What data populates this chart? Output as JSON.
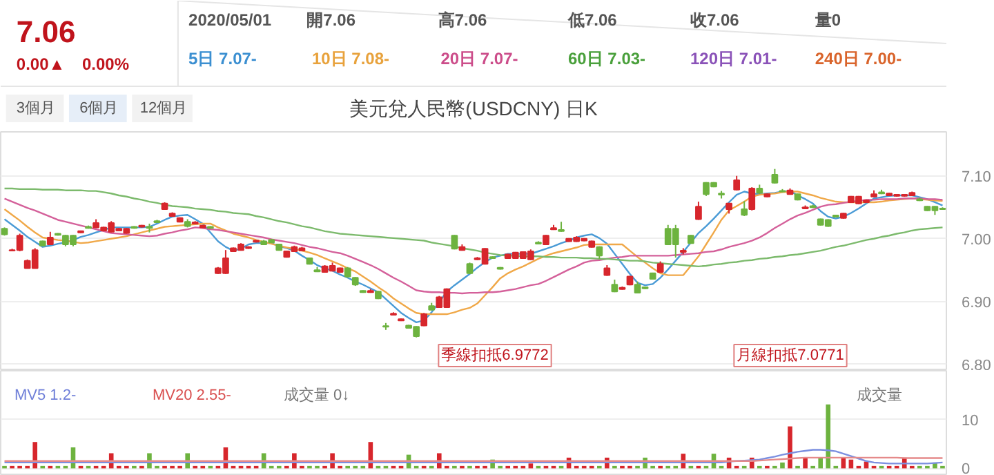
{
  "chart_data": [
    {
      "type": "candlestick",
      "title": "美元兌人民幣(USDCNY) 日K",
      "categories": [
        null,
        null,
        null,
        null,
        null,
        null,
        null,
        null,
        null,
        null,
        null,
        null,
        null,
        null,
        null,
        null,
        null,
        null,
        null,
        null,
        null,
        null,
        null,
        null,
        null,
        null,
        null,
        null,
        null,
        null,
        null,
        null,
        null,
        null,
        null,
        null,
        null,
        null,
        null,
        null,
        null,
        null,
        null,
        null,
        null,
        null,
        null,
        null,
        null,
        null,
        null,
        null,
        null,
        null,
        null,
        null,
        null,
        null,
        null,
        null,
        null,
        null,
        null,
        null,
        null,
        null,
        null,
        null,
        null,
        null,
        null,
        null,
        null,
        null,
        null,
        null,
        null,
        null,
        null,
        null,
        null,
        null,
        null,
        null,
        null,
        null,
        null,
        null,
        null,
        null,
        null,
        null,
        null,
        null,
        null,
        null,
        null,
        null,
        null,
        null,
        null,
        null,
        null,
        null,
        null,
        null,
        null,
        null,
        null,
        null,
        null,
        null,
        null,
        null,
        null,
        null,
        null,
        null,
        null,
        null,
        null,
        null,
        null,
        null
      ],
      "ohlc": [
        [
          7.016,
          7.018,
          7.005,
          7.007
        ],
        [
          6.981,
          6.984,
          6.98,
          6.982
        ],
        [
          6.982,
          7.008,
          6.98,
          7.005
        ],
        [
          6.953,
          6.967,
          6.953,
          6.965
        ],
        [
          6.953,
          6.985,
          6.953,
          6.982
        ],
        [
          6.996,
          6.997,
          6.988,
          6.989
        ],
        [
          6.991,
          7.011,
          6.99,
          7.002
        ],
        [
          7.008,
          7.009,
          7.005,
          7.006
        ],
        [
          7.005,
          7.006,
          6.988,
          6.991
        ],
        [
          7.005,
          7.006,
          6.988,
          6.991
        ],
        [
          7.01,
          7.013,
          7.009,
          7.012
        ],
        [
          7.019,
          7.021,
          7.016,
          7.017
        ],
        [
          7.018,
          7.031,
          7.017,
          7.025
        ],
        [
          7.013,
          7.019,
          7.012,
          7.018
        ],
        [
          7.011,
          7.028,
          7.01,
          7.025
        ],
        [
          7.013,
          7.017,
          7.012,
          7.016
        ],
        [
          7.009,
          7.017,
          7.008,
          7.016
        ],
        [
          7.019,
          7.02,
          7.016,
          7.017
        ],
        [
          7.019,
          7.022,
          7.018,
          7.021
        ],
        [
          7.019,
          7.024,
          7.01,
          7.017
        ],
        [
          7.028,
          7.03,
          7.025,
          7.026
        ],
        [
          7.047,
          7.058,
          7.046,
          7.056
        ],
        [
          7.036,
          7.042,
          7.035,
          7.04
        ],
        [
          7.027,
          7.034,
          7.026,
          7.033
        ],
        [
          7.027,
          7.031,
          7.018,
          7.02
        ],
        [
          7.024,
          7.028,
          7.023,
          7.026
        ],
        [
          7.018,
          7.022,
          7.017,
          7.021
        ],
        [
          7.019,
          7.02,
          7.016,
          7.017
        ],
        [
          6.945,
          6.955,
          6.944,
          6.953
        ],
        [
          6.945,
          6.982,
          6.944,
          6.969
        ],
        [
          6.98,
          6.986,
          6.979,
          6.985
        ],
        [
          6.982,
          6.993,
          6.981,
          6.991
        ],
        [
          6.985,
          6.988,
          6.984,
          6.987
        ],
        [
          6.995,
          6.998,
          6.994,
          6.997
        ],
        [
          6.996,
          6.998,
          6.99,
          6.991
        ],
        [
          6.998,
          7.0,
          6.993,
          6.994
        ],
        [
          6.991,
          6.992,
          6.981,
          6.982
        ],
        [
          6.971,
          6.981,
          6.97,
          6.98
        ],
        [
          6.98,
          6.989,
          6.979,
          6.987
        ],
        [
          6.981,
          6.987,
          6.98,
          6.985
        ],
        [
          6.969,
          6.97,
          6.959,
          6.96
        ],
        [
          6.95,
          6.955,
          6.947,
          6.948
        ],
        [
          6.947,
          6.958,
          6.946,
          6.956
        ],
        [
          6.949,
          6.962,
          6.948,
          6.957
        ],
        [
          6.947,
          6.954,
          6.946,
          6.953
        ],
        [
          6.953,
          6.955,
          6.938,
          6.94
        ],
        [
          6.938,
          6.939,
          6.925,
          6.927
        ],
        [
          6.917,
          6.918,
          6.914,
          6.915
        ],
        [
          6.915,
          6.92,
          6.914,
          6.917
        ],
        [
          6.916,
          6.917,
          6.904,
          6.905
        ],
        [
          6.861,
          6.866,
          6.855,
          6.86
        ],
        [
          6.879,
          6.883,
          6.878,
          6.881
        ],
        [
          6.87,
          6.873,
          6.869,
          6.872
        ],
        [
          6.862,
          6.863,
          6.857,
          6.858
        ],
        [
          6.86,
          6.861,
          6.843,
          6.845
        ],
        [
          6.862,
          6.882,
          6.861,
          6.88
        ],
        [
          6.893,
          6.898,
          6.886,
          6.887
        ],
        [
          6.891,
          6.909,
          6.89,
          6.907
        ],
        [
          6.891,
          6.921,
          6.89,
          6.92
        ],
        [
          7.005,
          7.006,
          6.983,
          6.984
        ],
        [
          6.982,
          6.991,
          6.981,
          6.987
        ],
        [
          6.96,
          6.962,
          6.944,
          6.945
        ],
        [
          6.967,
          6.971,
          6.966,
          6.969
        ],
        [
          6.96,
          6.985,
          6.959,
          6.984
        ],
        [
          6.971,
          6.972,
          6.968,
          6.969
        ],
        [
          6.954,
          6.955,
          6.951,
          6.952
        ],
        [
          6.969,
          6.976,
          6.968,
          6.975
        ],
        [
          6.969,
          6.979,
          6.968,
          6.978
        ],
        [
          6.969,
          6.98,
          6.968,
          6.979
        ],
        [
          6.967,
          6.983,
          6.966,
          6.98
        ],
        [
          6.994,
          6.996,
          6.991,
          6.992
        ],
        [
          6.991,
          7.006,
          6.99,
          7.005
        ],
        [
          7.015,
          7.022,
          7.014,
          7.017
        ],
        [
          7.014,
          7.027,
          7.011,
          7.012
        ],
        [
          6.996,
          7.001,
          6.995,
          7.0
        ],
        [
          6.996,
          7.004,
          6.995,
          7.002
        ],
        [
          6.997,
          7.001,
          6.996,
          7.0
        ],
        [
          6.987,
          6.997,
          6.986,
          6.996
        ],
        [
          6.987,
          6.988,
          6.968,
          6.973
        ],
        [
          6.942,
          6.958,
          6.941,
          6.953
        ],
        [
          6.927,
          6.935,
          6.915,
          6.916
        ],
        [
          6.92,
          6.924,
          6.919,
          6.922
        ],
        [
          6.927,
          6.941,
          6.926,
          6.94
        ],
        [
          6.927,
          6.932,
          6.913,
          6.914
        ],
        [
          6.923,
          6.924,
          6.92,
          6.921
        ],
        [
          6.945,
          6.946,
          6.935,
          6.936
        ],
        [
          6.947,
          6.964,
          6.946,
          6.96
        ],
        [
          7.016,
          7.022,
          6.99,
          6.991
        ],
        [
          7.016,
          7.022,
          6.97,
          6.991
        ],
        [
          6.979,
          6.985,
          6.975,
          6.981
        ],
        [
          7.005,
          7.006,
          6.992,
          6.993
        ],
        [
          7.031,
          7.059,
          7.03,
          7.051
        ],
        [
          7.089,
          7.09,
          7.068,
          7.071
        ],
        [
          7.089,
          7.09,
          7.082,
          7.083
        ],
        [
          7.072,
          7.076,
          7.064,
          7.07
        ],
        [
          7.047,
          7.057,
          7.04,
          7.056
        ],
        [
          7.078,
          7.1,
          7.077,
          7.093
        ],
        [
          7.047,
          7.06,
          7.036,
          7.038
        ],
        [
          7.047,
          7.082,
          7.045,
          7.08
        ],
        [
          7.08,
          7.086,
          7.071,
          7.073
        ],
        [
          7.067,
          7.072,
          7.066,
          7.071
        ],
        [
          7.102,
          7.111,
          7.088,
          7.089
        ],
        [
          7.076,
          7.079,
          7.074,
          7.075
        ],
        [
          7.071,
          7.08,
          7.07,
          7.077
        ],
        [
          7.071,
          7.072,
          7.061,
          7.062
        ],
        [
          7.048,
          7.053,
          7.047,
          7.05
        ],
        [
          7.052,
          7.054,
          7.049,
          7.05
        ],
        [
          7.031,
          7.032,
          7.021,
          7.022
        ],
        [
          7.03,
          7.031,
          7.019,
          7.02
        ],
        [
          7.037,
          7.038,
          7.034,
          7.035
        ],
        [
          7.033,
          7.041,
          7.032,
          7.04
        ],
        [
          7.058,
          7.068,
          7.057,
          7.067
        ],
        [
          7.056,
          7.068,
          7.055,
          7.067
        ],
        [
          7.058,
          7.062,
          7.057,
          7.061
        ],
        [
          7.067,
          7.077,
          7.066,
          7.071
        ],
        [
          7.074,
          7.078,
          7.071,
          7.072
        ],
        [
          7.069,
          7.073,
          7.068,
          7.072
        ],
        [
          7.068,
          7.071,
          7.067,
          7.07
        ],
        [
          7.068,
          7.071,
          7.067,
          7.07
        ],
        [
          7.069,
          7.075,
          7.068,
          7.073
        ],
        [
          7.063,
          7.065,
          7.06,
          7.061
        ],
        [
          7.051,
          7.052,
          7.044,
          7.045
        ],
        [
          7.051,
          7.052,
          7.038,
          7.045
        ],
        [
          7.048,
          7.05,
          7.046,
          7.047
        ]
      ],
      "colors": [
        "#6db33f",
        "#d7262c",
        "#d7262c",
        "#d7262c",
        "#d7262c",
        "#6db33f",
        "#d7262c",
        "#6db33f",
        "#6db33f",
        "#6db33f",
        "#d7262c",
        "#6db33f",
        "#d7262c",
        "#d7262c",
        "#d7262c",
        "#d7262c",
        "#d7262c",
        "#6db33f",
        "#d7262c",
        "#6db33f",
        "#6db33f",
        "#d7262c",
        "#d7262c",
        "#d7262c",
        "#6db33f",
        "#d7262c",
        "#d7262c",
        "#6db33f",
        "#d7262c",
        "#d7262c",
        "#d7262c",
        "#d7262c",
        "#d7262c",
        "#d7262c",
        "#6db33f",
        "#6db33f",
        "#6db33f",
        "#d7262c",
        "#d7262c",
        "#d7262c",
        "#6db33f",
        "#6db33f",
        "#d7262c",
        "#d7262c",
        "#d7262c",
        "#6db33f",
        "#6db33f",
        "#6db33f",
        "#d7262c",
        "#6db33f",
        "#6db33f",
        "#d7262c",
        "#d7262c",
        "#6db33f",
        "#6db33f",
        "#d7262c",
        "#6db33f",
        "#d7262c",
        "#d7262c",
        "#6db33f",
        "#d7262c",
        "#6db33f",
        "#d7262c",
        "#d7262c",
        "#6db33f",
        "#6db33f",
        "#d7262c",
        "#d7262c",
        "#d7262c",
        "#d7262c",
        "#6db33f",
        "#d7262c",
        "#d7262c",
        "#6db33f",
        "#d7262c",
        "#d7262c",
        "#d7262c",
        "#d7262c",
        "#6db33f",
        "#d7262c",
        "#6db33f",
        "#d7262c",
        "#d7262c",
        "#6db33f",
        "#6db33f",
        "#6db33f",
        "#d7262c",
        "#6db33f",
        "#6db33f",
        "#d7262c",
        "#6db33f",
        "#d7262c",
        "#6db33f",
        "#6db33f",
        "#6db33f",
        "#d7262c",
        "#d7262c",
        "#6db33f",
        "#d7262c",
        "#6db33f",
        "#d7262c",
        "#6db33f",
        "#6db33f",
        "#d7262c",
        "#6db33f",
        "#d7262c",
        "#6db33f",
        "#6db33f",
        "#6db33f",
        "#6db33f",
        "#d7262c",
        "#d7262c",
        "#d7262c",
        "#d7262c",
        "#d7262c",
        "#6db33f",
        "#d7262c",
        "#d7262c",
        "#d7262c",
        "#d7262c",
        "#6db33f",
        "#6db33f",
        "#6db33f",
        "#6db33f"
      ],
      "series": [
        {
          "type": "line",
          "color": "#4a9bd6",
          "values": [
            7.031,
            7.022,
            7.013,
            7.003,
            6.995,
            6.987,
            6.989,
            6.992,
            6.994,
            6.998,
            7.003,
            7.006,
            7.01,
            7.014,
            7.018,
            7.018,
            7.018,
            7.018,
            7.018,
            7.019,
            7.024,
            7.03,
            7.035,
            7.037,
            7.038,
            7.031,
            7.024,
            7.01,
            6.996,
            6.987,
            6.981,
            6.984,
            6.991,
            6.993,
            6.993,
            6.993,
            6.988,
            6.985,
            6.981,
            6.973,
            6.966,
            6.958,
            6.953,
            6.949,
            6.943,
            6.938,
            6.932,
            6.927,
            6.921,
            6.915,
            6.904,
            6.893,
            6.882,
            6.874,
            6.867,
            6.87,
            6.883,
            6.899,
            6.916,
            6.926,
            6.935,
            6.944,
            6.954,
            6.963,
            6.97,
            6.973,
            6.976,
            6.976,
            6.976,
            6.976,
            6.98,
            6.984,
            6.988,
            6.993,
            6.997,
            7.002,
            7.005,
            7.007,
            7.001,
            6.992,
            6.976,
            6.96,
            6.944,
            6.93,
            6.926,
            6.928,
            6.938,
            6.951,
            6.965,
            6.979,
            6.994,
            7.009,
            7.02,
            7.032,
            7.045,
            7.058,
            7.07,
            7.075,
            7.072,
            7.071,
            7.072,
            7.073,
            7.075,
            7.076,
            7.069,
            7.063,
            7.056,
            7.044,
            7.035,
            7.032,
            7.035,
            7.041,
            7.048,
            7.056,
            7.064,
            7.066,
            7.068,
            7.069,
            7.069,
            7.069,
            7.066,
            7.063,
            7.058,
            7.053
          ]
        },
        {
          "type": "line",
          "color": "#f0a848",
          "values": [
            7.047,
            7.038,
            7.029,
            7.019,
            7.01,
            7.002,
            7.0,
            6.998,
            6.997,
            6.995,
            6.993,
            6.994,
            6.996,
            6.998,
            7.0,
            7.002,
            7.004,
            7.007,
            7.01,
            7.013,
            7.016,
            7.019,
            7.02,
            7.021,
            7.022,
            7.023,
            7.024,
            7.024,
            7.018,
            7.013,
            7.008,
            7.005,
            7.002,
            6.998,
            6.995,
            6.992,
            6.989,
            6.986,
            6.984,
            6.981,
            6.978,
            6.974,
            6.969,
            6.964,
            6.959,
            6.953,
            6.948,
            6.94,
            6.932,
            6.923,
            6.915,
            6.905,
            6.897,
            6.889,
            6.882,
            6.88,
            6.88,
            6.88,
            6.88,
            6.883,
            6.887,
            6.89,
            6.897,
            6.91,
            6.923,
            6.937,
            6.945,
            6.951,
            6.956,
            6.962,
            6.968,
            6.973,
            6.977,
            6.98,
            6.983,
            6.986,
            6.99,
            6.991,
            6.991,
            6.991,
            6.991,
            6.991,
            6.981,
            6.971,
            6.962,
            6.953,
            6.945,
            6.942,
            6.942,
            6.942,
            6.957,
            6.972,
            6.991,
            7.01,
            7.03,
            7.045,
            7.052,
            7.059,
            7.067,
            7.07,
            7.071,
            7.072,
            7.074,
            7.075,
            7.075,
            7.072,
            7.069,
            7.065,
            7.062,
            7.059,
            7.058,
            7.058,
            7.058,
            7.058,
            7.058,
            7.059,
            7.061,
            7.062,
            7.063,
            7.064,
            7.063,
            7.062,
            7.061,
            7.06
          ]
        },
        {
          "type": "line",
          "color": "#d4609a",
          "values": [
            7.064,
            7.059,
            7.054,
            7.049,
            7.045,
            7.04,
            7.035,
            7.03,
            7.027,
            7.024,
            7.021,
            7.018,
            7.015,
            7.012,
            7.009,
            7.008,
            7.007,
            7.006,
            7.005,
            7.004,
            7.005,
            7.008,
            7.01,
            7.013,
            7.015,
            7.018,
            7.017,
            7.015,
            7.014,
            7.012,
            7.01,
            7.008,
            7.006,
            7.004,
            7.002,
            6.999,
            6.997,
            6.995,
            6.993,
            6.99,
            6.987,
            6.985,
            6.982,
            6.979,
            6.977,
            6.973,
            6.968,
            6.963,
            6.958,
            6.952,
            6.945,
            6.938,
            6.932,
            6.925,
            6.918,
            6.916,
            6.915,
            6.915,
            6.914,
            6.914,
            6.913,
            6.914,
            6.914,
            6.915,
            6.915,
            6.916,
            6.918,
            6.92,
            6.923,
            6.926,
            6.928,
            6.933,
            6.939,
            6.945,
            6.951,
            6.956,
            6.962,
            6.965,
            6.966,
            6.968,
            6.97,
            6.971,
            6.973,
            6.973,
            6.973,
            6.973,
            6.973,
            6.973,
            6.974,
            6.975,
            6.976,
            6.977,
            6.979,
            6.98,
            6.983,
            6.987,
            6.99,
            6.993,
            6.997,
            7.002,
            7.009,
            7.017,
            7.024,
            7.031,
            7.037,
            7.041,
            7.046,
            7.051,
            7.054,
            7.055,
            7.057,
            7.059,
            7.06,
            7.062,
            7.062,
            7.063,
            7.063,
            7.063,
            7.064,
            7.064,
            7.064,
            7.063,
            7.063,
            7.062
          ]
        },
        {
          "type": "line",
          "color": "#7cba6c",
          "values": [
            7.08,
            7.08,
            7.079,
            7.079,
            7.079,
            7.078,
            7.078,
            7.078,
            7.077,
            7.077,
            7.077,
            7.076,
            7.076,
            7.074,
            7.072,
            7.069,
            7.067,
            7.064,
            7.062,
            7.059,
            7.057,
            7.054,
            7.052,
            7.051,
            7.05,
            7.048,
            7.047,
            7.046,
            7.044,
            7.043,
            7.041,
            7.04,
            7.039,
            7.036,
            7.034,
            7.031,
            7.028,
            7.026,
            7.023,
            7.02,
            7.018,
            7.015,
            7.012,
            7.01,
            7.008,
            7.007,
            7.006,
            7.005,
            7.004,
            7.003,
            7.002,
            7.001,
            7.0,
            6.999,
            6.998,
            6.997,
            6.994,
            6.992,
            6.99,
            6.988,
            6.985,
            6.983,
            6.981,
            6.978,
            6.976,
            6.974,
            6.973,
            6.973,
            6.972,
            6.972,
            6.972,
            6.971,
            6.971,
            6.97,
            6.97,
            6.97,
            6.969,
            6.969,
            6.968,
            6.968,
            6.967,
            6.966,
            6.965,
            6.965,
            6.964,
            6.962,
            6.961,
            6.96,
            6.959,
            6.958,
            6.957,
            6.956,
            6.957,
            6.959,
            6.96,
            6.962,
            6.963,
            6.965,
            6.966,
            6.968,
            6.969,
            6.971,
            6.972,
            6.974,
            6.975,
            6.977,
            6.979,
            6.981,
            6.984,
            6.987,
            6.989,
            6.992,
            6.995,
            6.998,
            7.0,
            7.003,
            7.005,
            7.008,
            7.01,
            7.013,
            7.015,
            7.016,
            7.017,
            7.018
          ]
        }
      ],
      "annotations": [
        "7.06",
        "0.00▲",
        "0.00%",
        "2020/05/01",
        "開7.06",
        "高7.06",
        "低7.06",
        "收7.06",
        "量0",
        "5日 7.07-",
        "10日 7.08-",
        "20日 7.07-",
        "60日 7.03-",
        "120日 7.01-",
        "240日 7.00-",
        "3個月",
        "6個月",
        "12個月",
        "季線扣抵6.9772",
        "月線扣抵7.0771"
      ],
      "ylim": [
        6.79,
        7.17
      ],
      "yticks": [
        {
          "value": 6.8,
          "label": "6.80"
        },
        {
          "value": 6.9,
          "label": "6.90"
        },
        {
          "value": 7.0,
          "label": "7.00"
        },
        {
          "value": 7.1,
          "label": "7.10"
        }
      ],
      "grid": "y",
      "tick_labels": "y"
    },
    {
      "type": "bar",
      "categories": [
        null,
        null,
        null,
        null,
        null,
        null,
        null,
        null,
        null,
        null,
        null,
        null,
        null,
        null,
        null,
        null,
        null,
        null,
        null,
        null,
        null,
        null,
        null,
        null,
        null,
        null,
        null,
        null,
        null,
        null,
        null,
        null,
        null,
        null,
        null,
        null,
        null,
        null,
        null,
        null,
        null,
        null,
        null,
        null,
        null,
        null,
        null,
        null,
        null,
        null,
        null,
        null,
        null,
        null,
        null,
        null,
        null,
        null,
        null,
        null,
        null,
        null,
        null,
        null,
        null,
        null,
        null,
        null,
        null,
        null,
        null,
        null,
        null,
        null,
        null,
        null,
        null,
        null,
        null,
        null,
        null,
        null,
        null,
        null,
        null,
        null,
        null,
        null,
        null,
        null,
        null,
        null,
        null,
        null,
        null,
        null,
        null,
        null,
        null,
        null,
        null,
        null,
        null,
        null,
        null,
        null,
        null,
        null,
        null,
        null,
        null,
        null,
        null,
        null,
        null,
        null,
        null,
        null,
        null,
        null,
        null,
        null,
        null,
        null
      ],
      "values": [
        0.5,
        0.5,
        0.5,
        0.5,
        5.4,
        0.5,
        0.5,
        0.5,
        0.5,
        4.3,
        0.5,
        0.5,
        0.5,
        0.5,
        3.1,
        0.5,
        0.5,
        0.5,
        0.5,
        3.1,
        0.5,
        0.5,
        0.5,
        0.5,
        3.1,
        0.5,
        0.5,
        0.5,
        0.5,
        4.3,
        0.5,
        0.5,
        0.5,
        0.5,
        3.1,
        0.5,
        0.5,
        0.5,
        3.1,
        0.5,
        0.5,
        0.5,
        0.5,
        3.1,
        0.5,
        0.5,
        0.5,
        0.5,
        5.4,
        0.5,
        0.5,
        0.5,
        0.5,
        2.8,
        0.5,
        0.5,
        0.5,
        3.1,
        0.5,
        0.5,
        0.5,
        0.5,
        0.5,
        0.5,
        1.8,
        0.5,
        0.5,
        0.5,
        0.5,
        1.0,
        0.5,
        0.5,
        0.5,
        0.5,
        2.2,
        0.5,
        0.5,
        0.5,
        0.5,
        2.2,
        0.5,
        0.5,
        0.5,
        0.5,
        2.2,
        0.5,
        0.5,
        0.5,
        0.5,
        3.0,
        0.5,
        0.5,
        0.5,
        3.0,
        0.5,
        2.2,
        0.5,
        0.5,
        2.2,
        0.5,
        0.5,
        0.5,
        1.2,
        8.6,
        0.5,
        2.2,
        0.5,
        2.2,
        13.1,
        0.5,
        2.2,
        1.8,
        0.5,
        1.4,
        0.5,
        0.5,
        0.5,
        0.5,
        2.2,
        0.5,
        0.5,
        0.5,
        1.2,
        0.5
      ],
      "colors": [
        "#6db33f",
        "#d7262c",
        "#d7262c",
        "#d7262c",
        "#d7262c",
        "#6db33f",
        "#d7262c",
        "#6db33f",
        "#6db33f",
        "#6db33f",
        "#d7262c",
        "#6db33f",
        "#d7262c",
        "#d7262c",
        "#d7262c",
        "#d7262c",
        "#d7262c",
        "#6db33f",
        "#d7262c",
        "#6db33f",
        "#6db33f",
        "#d7262c",
        "#d7262c",
        "#d7262c",
        "#6db33f",
        "#d7262c",
        "#d7262c",
        "#6db33f",
        "#d7262c",
        "#d7262c",
        "#d7262c",
        "#d7262c",
        "#d7262c",
        "#d7262c",
        "#6db33f",
        "#6db33f",
        "#6db33f",
        "#d7262c",
        "#d7262c",
        "#d7262c",
        "#6db33f",
        "#6db33f",
        "#d7262c",
        "#d7262c",
        "#d7262c",
        "#6db33f",
        "#6db33f",
        "#6db33f",
        "#d7262c",
        "#6db33f",
        "#6db33f",
        "#d7262c",
        "#d7262c",
        "#6db33f",
        "#6db33f",
        "#d7262c",
        "#6db33f",
        "#d7262c",
        "#d7262c",
        "#6db33f",
        "#d7262c",
        "#6db33f",
        "#d7262c",
        "#d7262c",
        "#6db33f",
        "#6db33f",
        "#d7262c",
        "#d7262c",
        "#d7262c",
        "#d7262c",
        "#6db33f",
        "#d7262c",
        "#d7262c",
        "#6db33f",
        "#d7262c",
        "#d7262c",
        "#d7262c",
        "#d7262c",
        "#6db33f",
        "#d7262c",
        "#6db33f",
        "#d7262c",
        "#d7262c",
        "#6db33f",
        "#6db33f",
        "#6db33f",
        "#d7262c",
        "#6db33f",
        "#6db33f",
        "#d7262c",
        "#6db33f",
        "#d7262c",
        "#6db33f",
        "#6db33f",
        "#6db33f",
        "#d7262c",
        "#d7262c",
        "#6db33f",
        "#d7262c",
        "#6db33f",
        "#d7262c",
        "#6db33f",
        "#6db33f",
        "#d7262c",
        "#6db33f",
        "#d7262c",
        "#6db33f",
        "#6db33f",
        "#6db33f",
        "#6db33f",
        "#d7262c",
        "#d7262c",
        "#d7262c",
        "#d7262c",
        "#d7262c",
        "#6db33f",
        "#d7262c",
        "#d7262c",
        "#d7262c",
        "#d7262c",
        "#6db33f",
        "#6db33f",
        "#6db33f",
        "#6db33f"
      ],
      "series": [
        {
          "type": "line",
          "color": "#7b8fe0",
          "values": [
            1.2,
            1.2,
            1.2,
            1.2,
            1.2,
            1.2,
            1.2,
            1.2,
            1.2,
            1.2,
            1.2,
            1.2,
            1.2,
            1.2,
            1.2,
            1.2,
            1.2,
            1.2,
            1.2,
            1.2,
            1.2,
            1.2,
            1.2,
            1.2,
            1.2,
            1.2,
            1.2,
            1.2,
            1.2,
            1.2,
            1.2,
            1.2,
            1.2,
            1.2,
            1.2,
            1.2,
            1.2,
            1.2,
            1.2,
            1.2,
            1.2,
            1.2,
            1.2,
            1.2,
            1.2,
            1.2,
            1.2,
            1.2,
            1.2,
            1.2,
            1.2,
            1.2,
            1.2,
            1.2,
            1.2,
            1.2,
            1.2,
            1.2,
            1.2,
            1.2,
            1.2,
            1.2,
            1.2,
            1.2,
            1.2,
            1.2,
            1.2,
            1.2,
            1.2,
            1.2,
            1.2,
            1.2,
            1.2,
            1.2,
            1.2,
            1.2,
            1.2,
            1.2,
            1.2,
            1.2,
            1.2,
            1.2,
            1.2,
            1.2,
            1.2,
            1.2,
            1.2,
            1.2,
            1.2,
            1.2,
            1.2,
            1.2,
            1.2,
            1.2,
            1.2,
            1.4,
            1.5,
            1.6,
            1.7,
            1.8,
            2.1,
            2.4,
            2.8,
            3.1,
            3.4,
            3.6,
            3.8,
            3.8,
            3.7,
            3.5,
            3.0,
            2.5,
            2.0,
            1.5,
            1.2,
            1.1,
            1.0,
            1.0,
            1.0,
            1.0,
            1.0,
            1.0,
            1.1,
            1.2
          ]
        },
        {
          "type": "line",
          "color": "#e58a8a",
          "values": [
            1.5,
            1.5,
            1.5,
            1.5,
            1.5,
            1.5,
            1.5,
            1.5,
            1.5,
            1.5,
            1.5,
            1.5,
            1.5,
            1.5,
            1.5,
            1.5,
            1.5,
            1.5,
            1.5,
            1.5,
            1.5,
            1.5,
            1.5,
            1.5,
            1.5,
            1.5,
            1.5,
            1.5,
            1.5,
            1.5,
            1.5,
            1.5,
            1.5,
            1.5,
            1.5,
            1.5,
            1.5,
            1.5,
            1.5,
            1.5,
            1.5,
            1.5,
            1.5,
            1.5,
            1.5,
            1.5,
            1.5,
            1.5,
            1.5,
            1.5,
            1.5,
            1.5,
            1.5,
            1.5,
            1.5,
            1.5,
            1.5,
            1.5,
            1.5,
            1.5,
            1.5,
            1.5,
            1.5,
            1.5,
            1.5,
            1.5,
            1.5,
            1.5,
            1.5,
            1.5,
            1.5,
            1.5,
            1.5,
            1.5,
            1.5,
            1.5,
            1.5,
            1.5,
            1.5,
            1.5,
            1.5,
            1.5,
            1.5,
            1.5,
            1.5,
            1.5,
            1.5,
            1.5,
            1.5,
            1.5,
            1.5,
            1.5,
            1.5,
            1.5,
            1.5,
            1.5,
            1.5,
            1.5,
            1.5,
            1.6,
            1.7,
            1.8,
            1.9,
            2.0,
            2.1,
            2.2,
            2.2,
            2.2,
            2.2,
            2.2,
            2.2,
            2.2,
            2.2,
            2.2,
            2.2,
            2.2,
            2.2,
            2.2,
            2.1,
            2.1,
            2.1,
            2.1,
            2.1,
            2.1
          ]
        }
      ],
      "annotations": [
        "MV5 1.2-",
        "MV20 2.55-",
        "成交量 0↓",
        "成交量"
      ],
      "ylim": [
        -1.5,
        20
      ],
      "yticks": [
        0,
        10
      ],
      "grid": "y",
      "tick_labels": "y"
    }
  ]
}
